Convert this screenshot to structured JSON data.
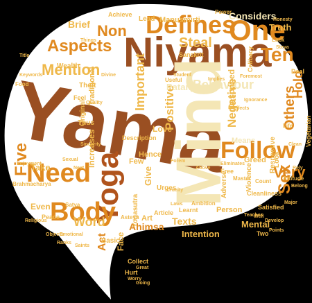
{
  "colors": {
    "background": "#000000",
    "bubble": "#ffffff",
    "brown": "#9a4f22",
    "rust": "#b0531c",
    "orange": "#e0891f",
    "gold": "#efb84a",
    "cream": "#f4e6b5",
    "tan": "#c79a5a"
  },
  "words": {
    "yama": "Yama",
    "niyama": "Niyama",
    "mind": "Mind",
    "yoga": "Yoga",
    "defines": "Defines",
    "one": "One",
    "ten": "Ten",
    "five": "Five",
    "need": "Need",
    "body": "Body",
    "follow": "Follow",
    "aspects": "Aspects",
    "mention": "Mention",
    "non": "Non",
    "important": "Important",
    "positive": "Positive",
    "negative": "Negative",
    "behaviour": "Behaviour",
    "others": "Others",
    "sex": "Sex",
    "very": "Very",
    "steal": "Steal",
    "brief": "Brief",
    "considers": "Considers",
    "truth": "Truth",
    "hold": "Hold",
    "patanjali": "Patanjali",
    "described": "Described",
    "means": "Means",
    "texts": "Texts",
    "intention": "Intention",
    "mental": "Mental",
    "ahimsa": "Ahimsa",
    "word": "Word",
    "act": "Act",
    "even": "Even",
    "take": "Take",
    "increases": "Increases",
    "give": "Give",
    "face": "Face",
    "love": "Love",
    "basic": "Basic",
    "greed": "Greed",
    "look": "Look",
    "traditional": "Traditional",
    "original": "Original",
    "thus": "Thus",
    "description": "Description",
    "lead": "Lead",
    "manusmirti": "Manusmirti",
    "theft": "Theft",
    "wealth": "Wealth",
    "respective": "Respective",
    "vegetarian": "Vegetarian",
    "yogasutra": "Yogasutra",
    "person": "Person",
    "violence": "Violence",
    "adverse": "Adverse",
    "peace": "Peace",
    "achieve": "Achieve",
    "sanskrit": "Sanskrit",
    "celibacy": "Celibacy",
    "urges": "Urges",
    "few": "Few",
    "hence": "Hence",
    "art": "Art",
    "article": "Article",
    "free": "Free",
    "cleanliness": "Cleanliness",
    "satisfied": "Satisfied",
    "learnt": "Learnt",
    "two": "Two",
    "collect": "Collect",
    "hurt": "Hurt",
    "brahmacharya": "Brahmacharya",
    "asteya": "Asteya",
    "satya": "Satya",
    "ambition": "Ambition",
    "count": "Count",
    "master": "Master",
    "attitude": "Attitude",
    "life": "Life",
    "power": "Power",
    "useful": "Useful",
    "student": "Student",
    "honesty": "Honesty",
    "lack": "Lack",
    "steya": "Steya",
    "deal": "Deal",
    "foremost": "Foremost",
    "ignorance": "Ignorance",
    "effects": "Effects",
    "cruelty": "Cruelty",
    "keywords": "Keywords",
    "food": "Food",
    "things": "Things",
    "divine": "Divine",
    "implies": "Implies",
    "teaches": "Teaches",
    "develop": "Develop",
    "above": "Above",
    "emotional": "Emotional",
    "major": "Major",
    "points": "Points",
    "ranks": "Ranks",
    "religious": "Religious",
    "objects": "Objects",
    "saints": "Saints",
    "feel": "Feel",
    "quality": "Quality",
    "next": "Next",
    "rely": "Rely",
    "form": "Forem",
    "eliminates": "Eliminates",
    "belong": "Belong",
    "going": "Going",
    "worry": "Worry",
    "great": "Great",
    "well": "Well",
    "laws": "Laws",
    "title": "Title",
    "sexual": "Sexual",
    "enjoyment": "Enjoyment",
    "sincerity": "Sincerity",
    "clean": "Clean"
  }
}
